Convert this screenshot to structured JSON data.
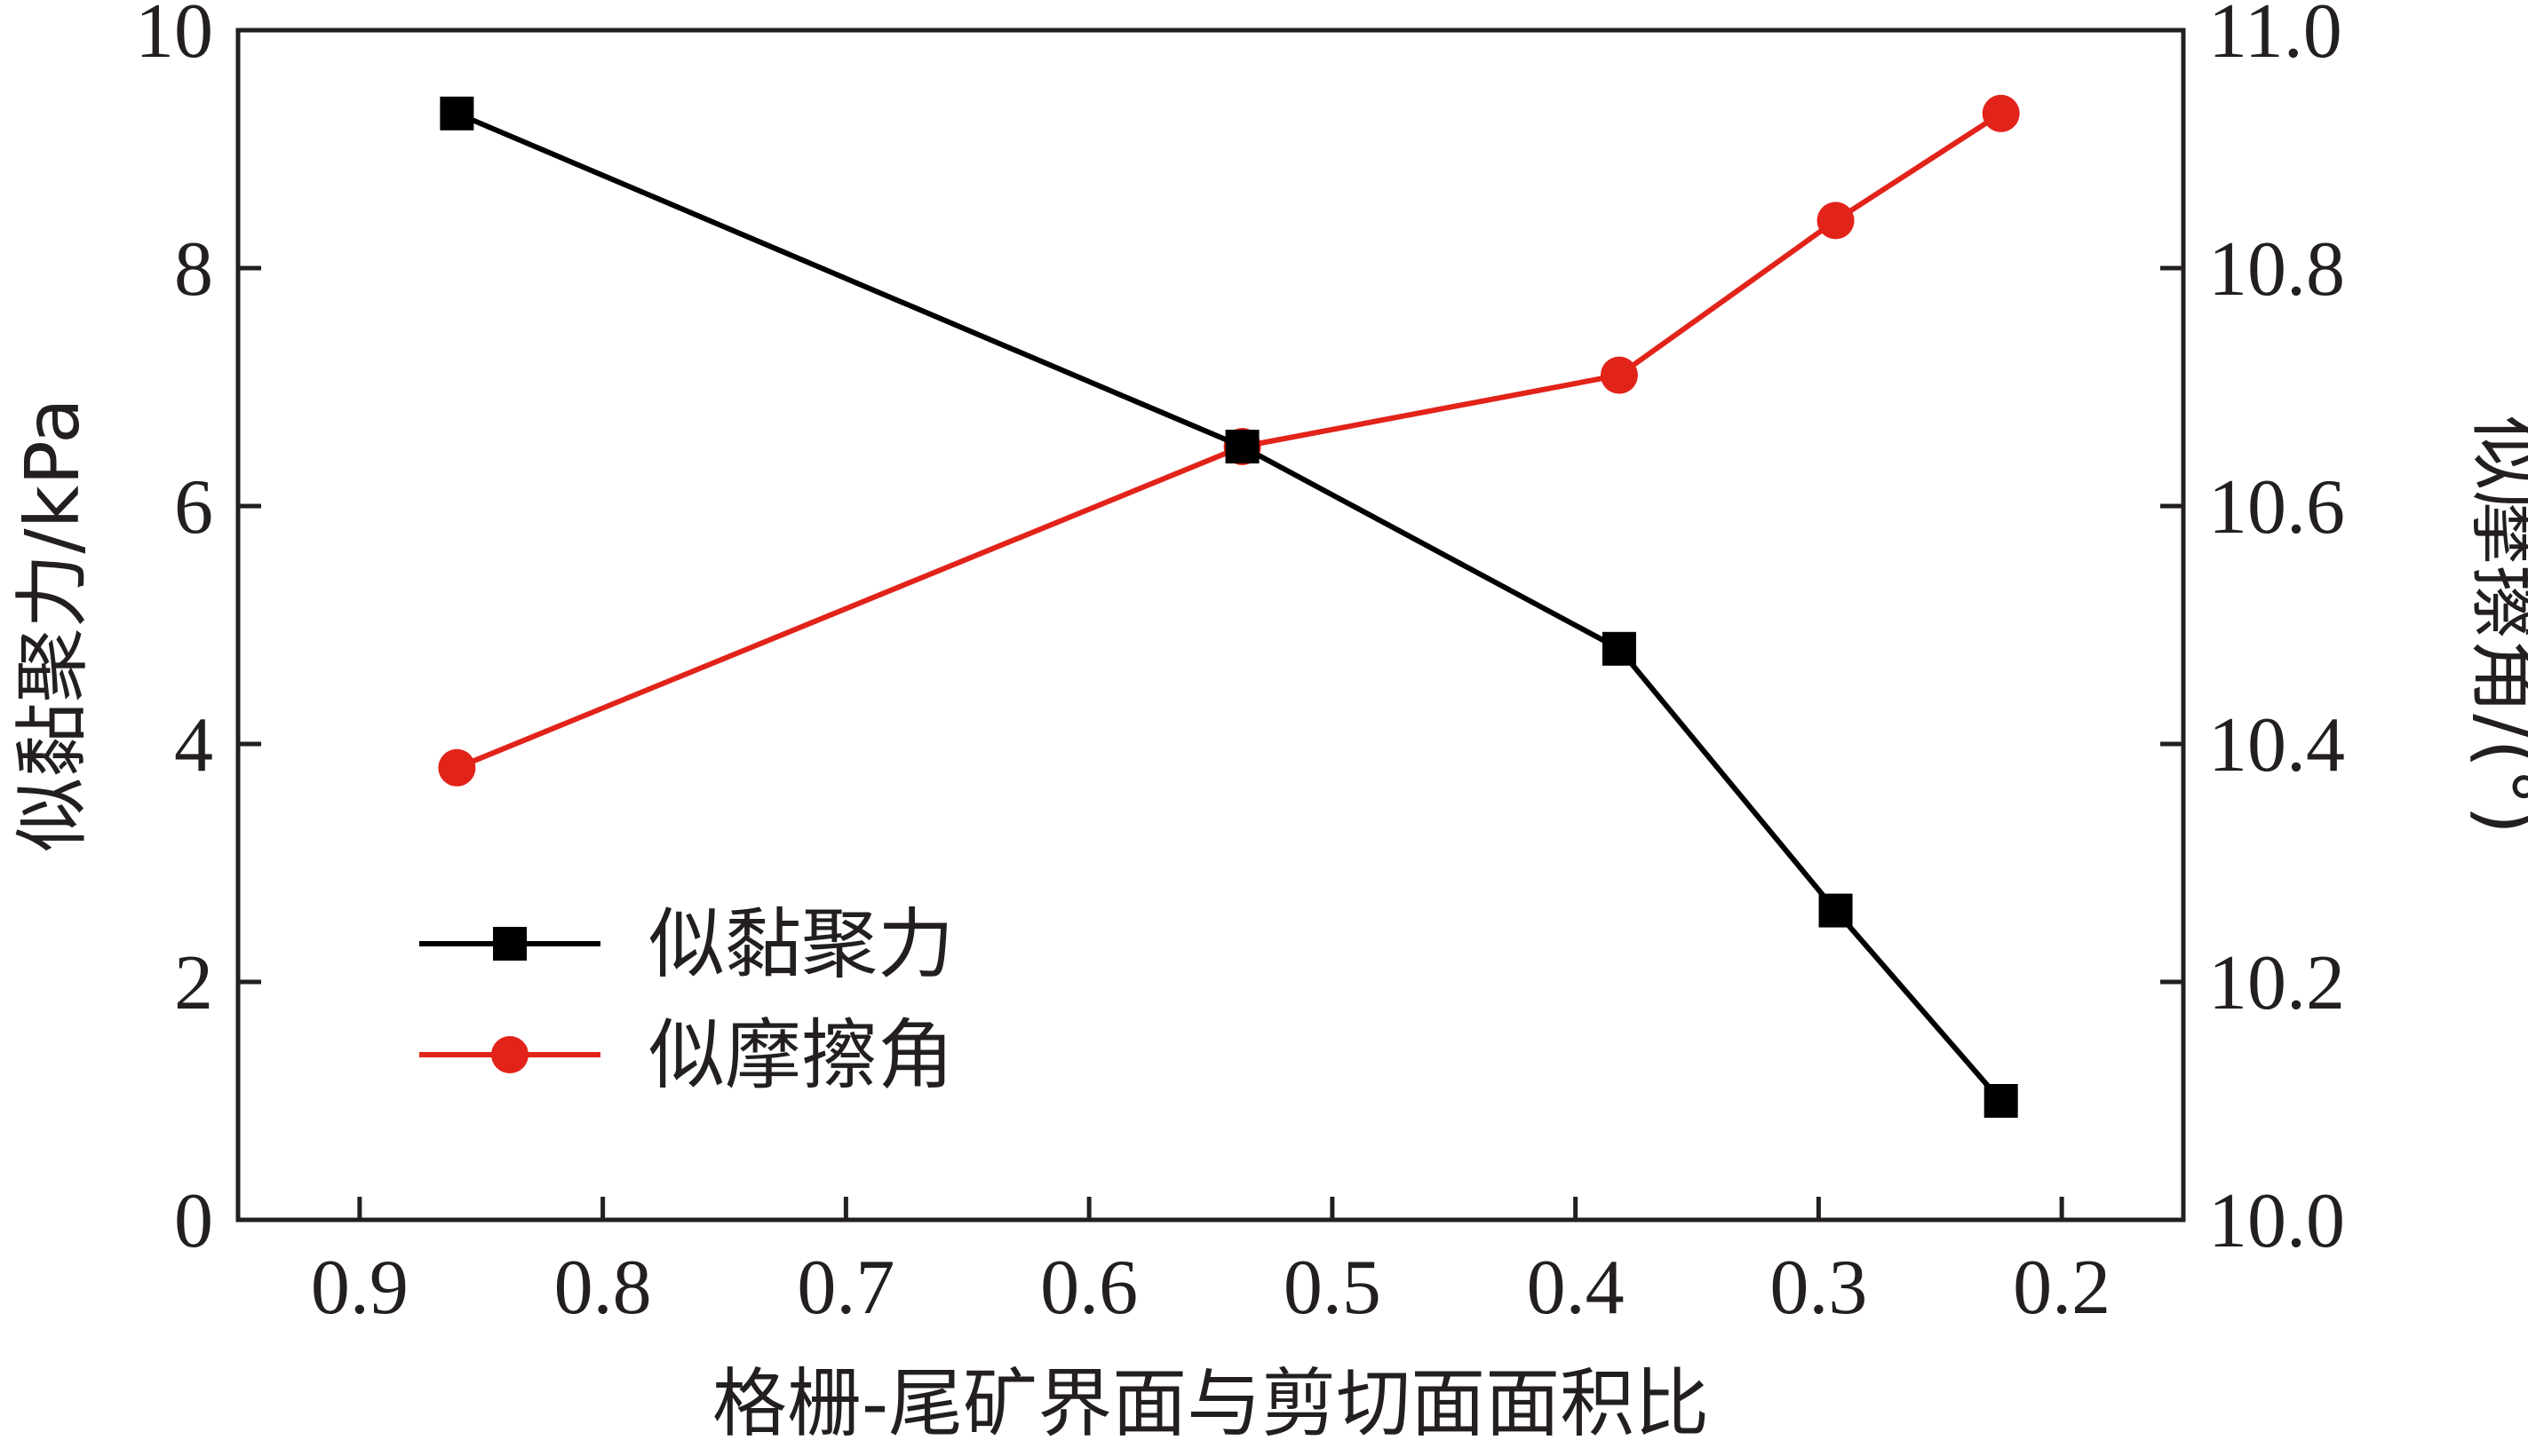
{
  "chart_data": {
    "type": "line",
    "xlabel": "格栅-尾矿界面与剪切面面积比",
    "ylabel_left": "似黏聚力/kPa",
    "ylabel_right": "似摩擦角/(°)",
    "x_axis": {
      "range": [
        0.95,
        0.15
      ],
      "reversed": true,
      "ticks": [
        0.9,
        0.8,
        0.7,
        0.6,
        0.5,
        0.4,
        0.3,
        0.2
      ],
      "tick_labels": [
        "0.9",
        "0.8",
        "0.7",
        "0.6",
        "0.5",
        "0.4",
        "0.3",
        "0.2"
      ]
    },
    "y_left": {
      "range": [
        0,
        10
      ],
      "ticks": [
        0,
        2,
        4,
        6,
        8,
        10
      ],
      "tick_labels": [
        "0",
        "2",
        "4",
        "6",
        "8",
        "10"
      ]
    },
    "y_right": {
      "range": [
        10.0,
        11.0
      ],
      "ticks": [
        10.0,
        10.2,
        10.4,
        10.6,
        10.8,
        11.0
      ],
      "tick_labels": [
        "10.0",
        "10.2",
        "10.4",
        "10.6",
        "10.8",
        "11.0"
      ]
    },
    "grid": false,
    "legend_position": "lower-left",
    "series": [
      {
        "name": "似黏聚力",
        "axis": "left",
        "marker": "square",
        "color": "#000000",
        "x": [
          0.86,
          0.537,
          0.382,
          0.293,
          0.225
        ],
        "y": [
          9.3,
          6.5,
          4.8,
          2.6,
          1.0
        ]
      },
      {
        "name": "似摩擦角",
        "axis": "right",
        "marker": "circle",
        "color": "#e2231a",
        "x": [
          0.86,
          0.537,
          0.382,
          0.293,
          0.225
        ],
        "y": [
          10.38,
          10.65,
          10.71,
          10.84,
          10.93
        ]
      }
    ]
  }
}
